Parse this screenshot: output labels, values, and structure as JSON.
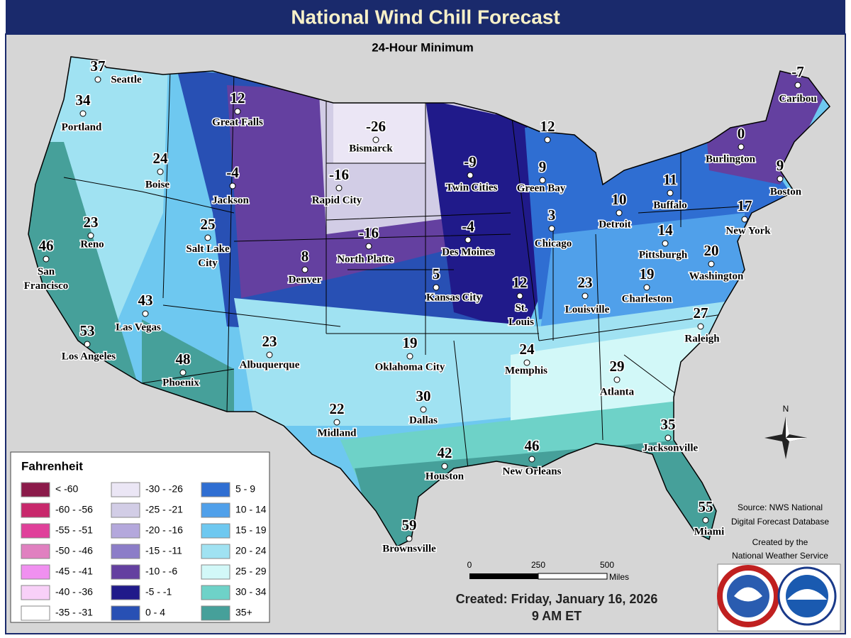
{
  "header": {
    "title": "National Wind Chill Forecast",
    "subtitle": "24-Hour Minimum"
  },
  "cities": [
    {
      "name": "Seattle",
      "value": 37
    },
    {
      "name": "Portland",
      "value": 34
    },
    {
      "name": "Great Falls",
      "value": 12
    },
    {
      "name": "Bismarck",
      "value": -26
    },
    {
      "name": "Twin Cities",
      "value": -9
    },
    {
      "name": "Green Bay",
      "value": 9
    },
    {
      "name": null,
      "value": 12
    },
    {
      "name": "Caribou",
      "value": -7
    },
    {
      "name": "Burlington",
      "value": 0
    },
    {
      "name": "Boston",
      "value": 9
    },
    {
      "name": "Buffalo",
      "value": 11
    },
    {
      "name": "Detroit",
      "value": 10
    },
    {
      "name": "Chicago",
      "value": 3
    },
    {
      "name": "Boise",
      "value": 24
    },
    {
      "name": "Jackson",
      "value": -4
    },
    {
      "name": "Rapid City",
      "value": -16
    },
    {
      "name": "North Platte",
      "value": -16
    },
    {
      "name": "Des Moines",
      "value": -4
    },
    {
      "name": "Reno",
      "value": 23
    },
    {
      "name": "San Francisco",
      "value": 46
    },
    {
      "name": "Salt Lake City",
      "value": 25
    },
    {
      "name": "Denver",
      "value": 8
    },
    {
      "name": "Kansas City",
      "value": 5
    },
    {
      "name": "St. Louis",
      "value": 12
    },
    {
      "name": "Louisville",
      "value": 23
    },
    {
      "name": "Pittsburgh",
      "value": 14
    },
    {
      "name": "Charleston",
      "value": 19
    },
    {
      "name": "Washington",
      "value": 20
    },
    {
      "name": "New York",
      "value": 17
    },
    {
      "name": "Raleigh",
      "value": 27
    },
    {
      "name": "Las Vegas",
      "value": 43
    },
    {
      "name": "Los Angeles",
      "value": 53
    },
    {
      "name": "Phoenix",
      "value": 48
    },
    {
      "name": "Albuquerque",
      "value": 23
    },
    {
      "name": "Oklahoma City",
      "value": 19
    },
    {
      "name": "Memphis",
      "value": 24
    },
    {
      "name": "Atlanta",
      "value": 29
    },
    {
      "name": "Dallas",
      "value": 30
    },
    {
      "name": "Midland",
      "value": 22
    },
    {
      "name": "Houston",
      "value": 42
    },
    {
      "name": "New Orleans",
      "value": 46
    },
    {
      "name": "Jacksonville",
      "value": 35
    },
    {
      "name": "Miami",
      "value": 55
    },
    {
      "name": "Brownsville",
      "value": 59
    }
  ],
  "legend": {
    "title": "Fahrenheit",
    "items": [
      {
        "label": "< -60",
        "color": "#8b1a4a"
      },
      {
        "label": "-60 - -56",
        "color": "#c8286c"
      },
      {
        "label": "-55 - -51",
        "color": "#e0409a"
      },
      {
        "label": "-50 - -46",
        "color": "#e080c0"
      },
      {
        "label": "-45 - -41",
        "color": "#f090f0"
      },
      {
        "label": "-40 - -36",
        "color": "#f8d0f8"
      },
      {
        "label": "-35 - -31",
        "color": "#ffffff"
      },
      {
        "label": "-30 - -26",
        "color": "#ebe6f5"
      },
      {
        "label": "-25 - -21",
        "color": "#d2cde6"
      },
      {
        "label": "-20 - -16",
        "color": "#b4a8dc"
      },
      {
        "label": "-15 - -11",
        "color": "#8c7dc8"
      },
      {
        "label": "-10 - -6",
        "color": "#6440a0"
      },
      {
        "label": "-5 - -1",
        "color": "#201a8a"
      },
      {
        "label": "0 - 4",
        "color": "#2850b4"
      },
      {
        "label": "5 - 9",
        "color": "#2f6ed2"
      },
      {
        "label": "10 - 14",
        "color": "#50a0ea"
      },
      {
        "label": "15 - 19",
        "color": "#6ec8f0"
      },
      {
        "label": "20 - 24",
        "color": "#a0e2f2"
      },
      {
        "label": "25 - 29",
        "color": "#d2f8f8"
      },
      {
        "label": "30 - 34",
        "color": "#6ed2c8"
      },
      {
        "label": "35+",
        "color": "#46a09a"
      }
    ]
  },
  "scale": {
    "labels": [
      "0",
      "250",
      "500"
    ],
    "unit": "Miles"
  },
  "compass": "N",
  "source": [
    "Source: NWS National",
    "Digital Forecast Database"
  ],
  "credit": [
    "Created by the",
    "National Weather Service"
  ],
  "created": "Created: Friday, January 16, 2026",
  "time": "9 AM ET"
}
